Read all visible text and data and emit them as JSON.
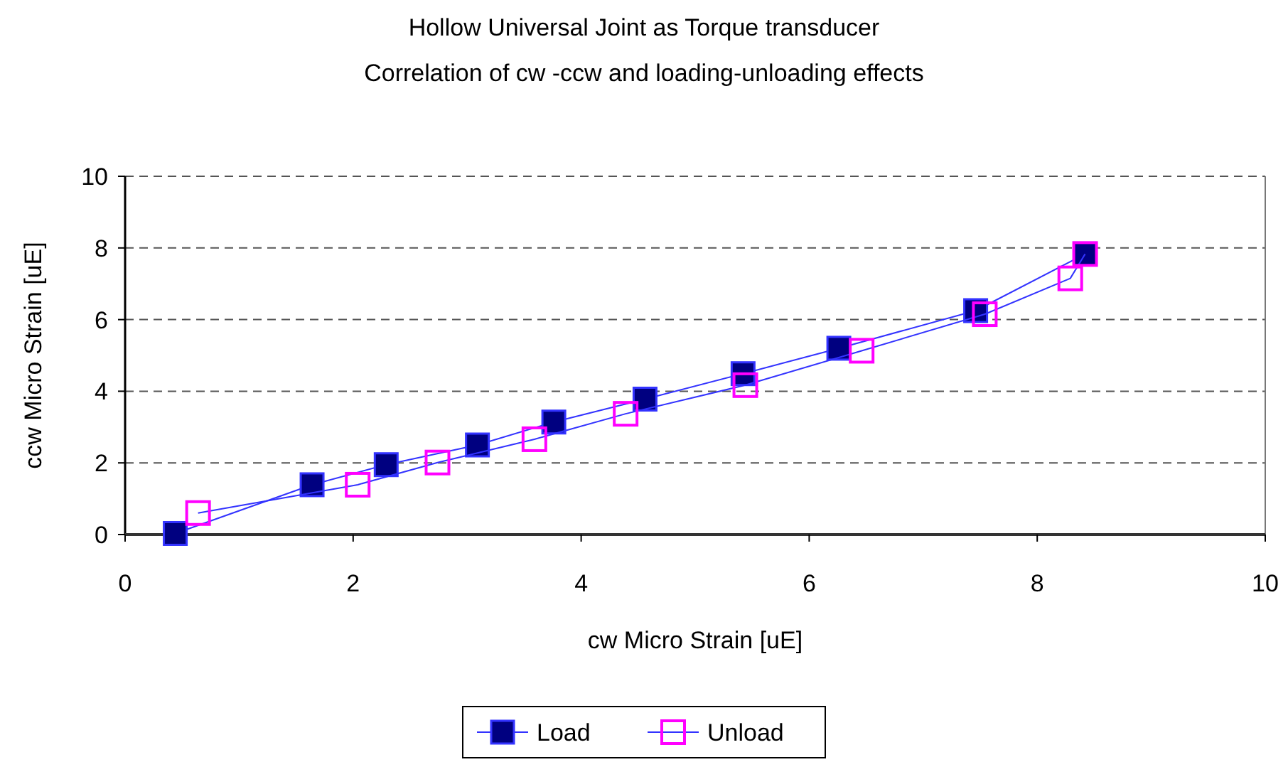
{
  "chart_data": {
    "type": "line",
    "title": "Hollow Universal Joint as Torque transducer",
    "subtitle": "Correlation of cw -ccw  and loading-unloading effects",
    "xlabel": "cw  Micro Strain [uE]",
    "ylabel": "ccw Micro Strain [uE]",
    "xlim": [
      0,
      10
    ],
    "ylim": [
      0,
      10
    ],
    "xticks": [
      0,
      2,
      4,
      6,
      8,
      10
    ],
    "yticks": [
      0,
      2,
      4,
      6,
      8,
      10
    ],
    "grid": "y",
    "legend": "bottom",
    "marker": "square",
    "line_style": "solid",
    "series": [
      {
        "name": "Load",
        "color": "#000080",
        "x": [
          0.44,
          1.64,
          2.29,
          3.09,
          3.76,
          4.56,
          5.42,
          6.26,
          7.46,
          8.42
        ],
        "values": [
          0.03,
          1.39,
          1.95,
          2.5,
          3.14,
          3.78,
          4.49,
          5.2,
          6.25,
          7.83
        ]
      },
      {
        "name": "Unload",
        "color": "#ff00ff",
        "x": [
          0.64,
          2.04,
          2.74,
          3.59,
          4.39,
          5.44,
          6.46,
          7.54,
          8.29,
          8.42
        ],
        "values": [
          0.6,
          1.39,
          2.01,
          2.66,
          3.37,
          4.17,
          5.13,
          6.15,
          7.15,
          7.83
        ]
      }
    ]
  }
}
